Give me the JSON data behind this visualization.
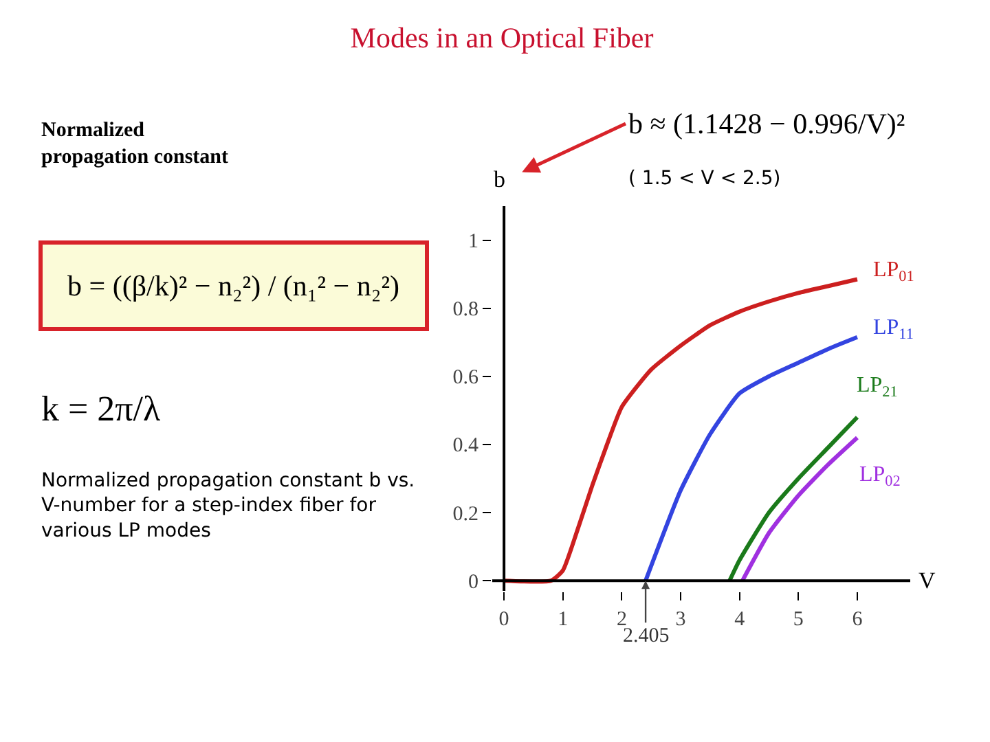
{
  "chart_data": {
    "type": "line",
    "title": "Modes in an Optical Fiber",
    "xlabel": "V",
    "ylabel": "b",
    "xlim": [
      -0.2,
      6.9
    ],
    "ylim": [
      -0.03,
      1.1
    ],
    "xticks": [
      0,
      1,
      2,
      3,
      4,
      5,
      6
    ],
    "yticks": [
      0,
      0.2,
      0.4,
      0.6,
      0.8,
      1
    ],
    "grid": false,
    "legend": false,
    "marker": "none",
    "line_style": "solid",
    "series": [
      {
        "name": "LP$_{01}$",
        "color": "#cc1f1f",
        "x": [
          0,
          0.8,
          1,
          1.25,
          1.5,
          1.75,
          2,
          2.5,
          3,
          3.5,
          4,
          4.5,
          5,
          5.5,
          6
        ],
        "values": [
          0,
          0,
          0.03,
          0.15,
          0.28,
          0.4,
          0.51,
          0.62,
          0.69,
          0.75,
          0.79,
          0.82,
          0.845,
          0.865,
          0.885
        ]
      },
      {
        "name": "LP$_{11}$",
        "color": "#3344e0",
        "x": [
          2.405,
          3,
          3.5,
          4,
          4.5,
          5,
          5.5,
          6
        ],
        "values": [
          0,
          0.265,
          0.43,
          0.55,
          0.6,
          0.64,
          0.68,
          0.715
        ]
      },
      {
        "name": "LP$_{21}$",
        "color": "#1a7a1a",
        "x": [
          3.832,
          4,
          4.5,
          5,
          5.5,
          6
        ],
        "values": [
          0,
          0.06,
          0.2,
          0.3,
          0.39,
          0.48
        ]
      },
      {
        "name": "LP$_{02}$",
        "color": "#a030e0",
        "x": [
          4.05,
          4.5,
          5,
          5.5,
          6
        ],
        "values": [
          0,
          0.14,
          0.25,
          0.34,
          0.42
        ]
      }
    ],
    "annotations": [
      "Normalized\npropagation constant",
      "b = ((β/k)² − n₂²) / (n₁² − n₂²)",
      "k = 2π/λ",
      "Normalized propagation constant b vs.\nV-number for a step-index fiber for\nvarious LP modes",
      "b ≈ (1.1428 − 0.996/V)²",
      "( 1.5 < V < 2.5)",
      {
        "text": "2.405",
        "x": 2.405,
        "y": 0
      }
    ]
  }
}
